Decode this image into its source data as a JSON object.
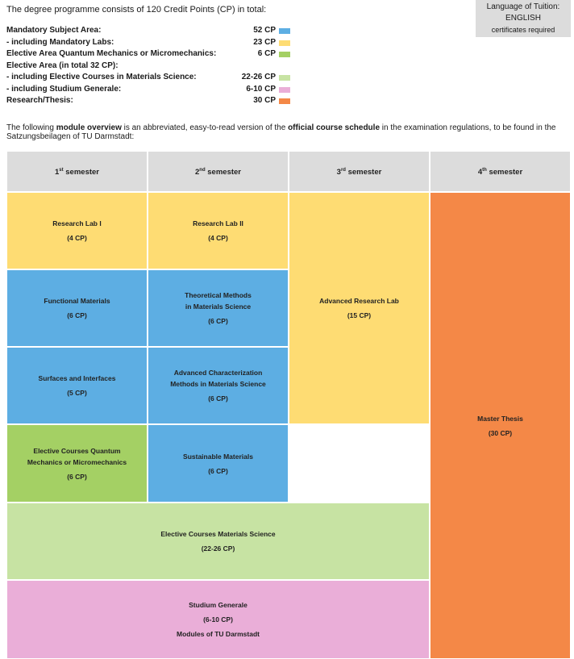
{
  "intro": "The degree programme consists of 120 Credit Points (CP) in total:",
  "tuition": {
    "label": "Language of Tuition:",
    "language": "ENGLISH",
    "note": "certificates required"
  },
  "credits": [
    {
      "label": "Mandatory Subject Area:",
      "cp": "52 CP",
      "color": "#5daee3"
    },
    {
      "label": "- including Mandatory Labs:",
      "cp": "23 CP",
      "color": "#fedc73"
    },
    {
      "label": "Elective Area Quantum Mechanics or Micromechanics:",
      "cp": "6 CP",
      "color": "#a4d064"
    },
    {
      "label": "Elective Area (in total 32 CP):",
      "cp": "",
      "color": ""
    },
    {
      "label": "- including Elective Courses in Materials Science:",
      "cp": "22-26 CP",
      "color": "#c7e3a3"
    },
    {
      "label": "- including Studium Generale:",
      "cp": "6-10 CP",
      "color": "#eaaed8"
    },
    {
      "label": "Research/Thesis:",
      "cp": "30 CP",
      "color": "#f48847"
    }
  ],
  "overview": {
    "p1": "The following ",
    "b1": "module overview",
    "p2": " is an abbreviated, easy-to-read version of the ",
    "b2": "official course schedule",
    "p3": " in the examination regulations, to be found in the Satzungsbeilagen of TU Darmstadt:"
  },
  "semesters": [
    {
      "num": "1",
      "suffix": "st",
      "label": "semester"
    },
    {
      "num": "2",
      "suffix": "nd",
      "label": "semester"
    },
    {
      "num": "3",
      "suffix": "rd",
      "label": "semester"
    },
    {
      "num": "4",
      "suffix": "th",
      "label": "semester"
    }
  ],
  "colors": {
    "header": "#dcdcdc",
    "lab": "#fedc73",
    "mandatory": "#5daee3",
    "elective_qm": "#a4d064",
    "elective_ms": "#c7e3a3",
    "studium": "#eaaed8",
    "thesis": "#f48847"
  },
  "modules": {
    "rl1": {
      "title": "Research Lab I",
      "cp": "(4 CP)"
    },
    "rl2": {
      "title": "Research Lab II",
      "cp": "(4 CP)"
    },
    "arl": {
      "title": "Advanced Research Lab",
      "cp": "(15 CP)"
    },
    "fm": {
      "title": "Functional Materials",
      "cp": "(6 CP)"
    },
    "tm": {
      "title": "Theoretical Methods",
      "title2": "in Materials Science",
      "cp": "(6 CP)"
    },
    "si": {
      "title": "Surfaces and Interfaces",
      "cp": "(5 CP)"
    },
    "acm": {
      "title": "Advanced Characterization",
      "title2": "Methods in Materials Science",
      "cp": "(6 CP)"
    },
    "ecq": {
      "title": "Elective Courses Quantum",
      "title2": "Mechanics or Micromechanics",
      "cp": "(6 CP)"
    },
    "sm": {
      "title": "Sustainable Materials",
      "cp": "(6 CP)"
    },
    "ecm": {
      "title": "Elective Courses Materials Science",
      "cp": "(22-26 CP)"
    },
    "sg": {
      "title": "Studium Generale",
      "cp": "(6-10 CP)",
      "note": "Modules of TU Darmstadt"
    },
    "mt": {
      "title": "Master Thesis",
      "cp": "(30 CP)"
    }
  }
}
